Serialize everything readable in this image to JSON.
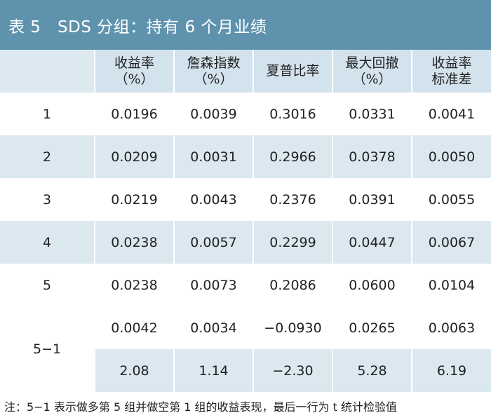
{
  "title": "表 5　SDS 分组：持有 6 个月业绩",
  "headers": [
    {
      "line1": "",
      "line2": ""
    },
    {
      "line1": "收益率",
      "line2": "（%）"
    },
    {
      "line1": "詹森指数",
      "line2": "（%）"
    },
    {
      "line1": "夏普比率",
      "line2": ""
    },
    {
      "line1": "最大回撤",
      "line2": "（%）"
    },
    {
      "line1": "收益率",
      "line2": "标准差"
    }
  ],
  "rows": [
    {
      "label": "1",
      "values": [
        "0.0196",
        "0.0039",
        "0.3016",
        "0.0331",
        "0.0041"
      ]
    },
    {
      "label": "2",
      "values": [
        "0.0209",
        "0.0031",
        "0.2966",
        "0.0378",
        "0.0050"
      ]
    },
    {
      "label": "3",
      "values": [
        "0.0219",
        "0.0043",
        "0.2376",
        "0.0391",
        "0.0055"
      ]
    },
    {
      "label": "4",
      "values": [
        "0.0238",
        "0.0057",
        "0.2299",
        "0.0447",
        "0.0067"
      ]
    },
    {
      "label": "5",
      "values": [
        "0.0238",
        "0.0073",
        "0.2086",
        "0.0600",
        "0.0104"
      ]
    }
  ],
  "spread": {
    "label": "5−1",
    "values": [
      "0.0042",
      "0.0034",
      "−0.0930",
      "0.0265",
      "0.0063"
    ],
    "tstats": [
      "2.08",
      "1.14",
      "−2.30",
      "5.28",
      "6.19"
    ]
  },
  "footnote": "注：5−1 表示做多第 5 组并做空第 1 组的收益表现，最后一行为 t 统计检验值",
  "colors": {
    "title_bg": "#5f93ad",
    "row_shade": "#dbe8f0",
    "header_bg": "#d3e3ee"
  }
}
